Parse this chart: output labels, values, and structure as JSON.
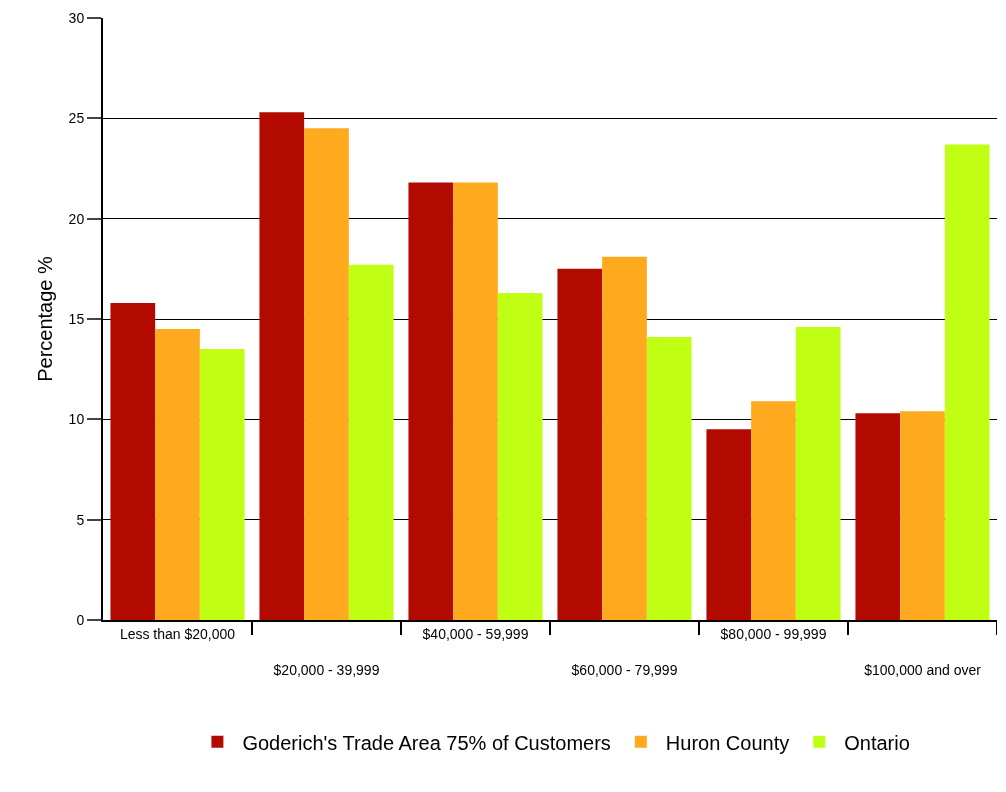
{
  "chart_data": {
    "type": "bar",
    "ylabel": "Percentage %",
    "categories": [
      "Less than $20,000",
      "$20,000 - 39,999",
      "$40,000 - 59,999",
      "$60,000 - 79,999",
      "$80,000 - 99,999",
      "$100,000 and over"
    ],
    "series": [
      {
        "name": "Goderich's Trade Area 75% of Customers",
        "color": "#b30a00",
        "values": [
          15.8,
          25.3,
          21.8,
          17.5,
          9.5,
          10.3
        ]
      },
      {
        "name": "Huron County",
        "color": "#ffaa1e",
        "values": [
          14.5,
          24.5,
          21.8,
          18.1,
          10.9,
          10.4
        ]
      },
      {
        "name": "Ontario",
        "color": "#c0ff14",
        "values": [
          13.5,
          17.7,
          16.3,
          14.1,
          14.6,
          23.7
        ]
      }
    ],
    "ylim": [
      0,
      30
    ],
    "yticks": [
      0,
      5,
      10,
      15,
      20,
      25,
      30
    ],
    "grid": "y",
    "legend": "bottom"
  }
}
